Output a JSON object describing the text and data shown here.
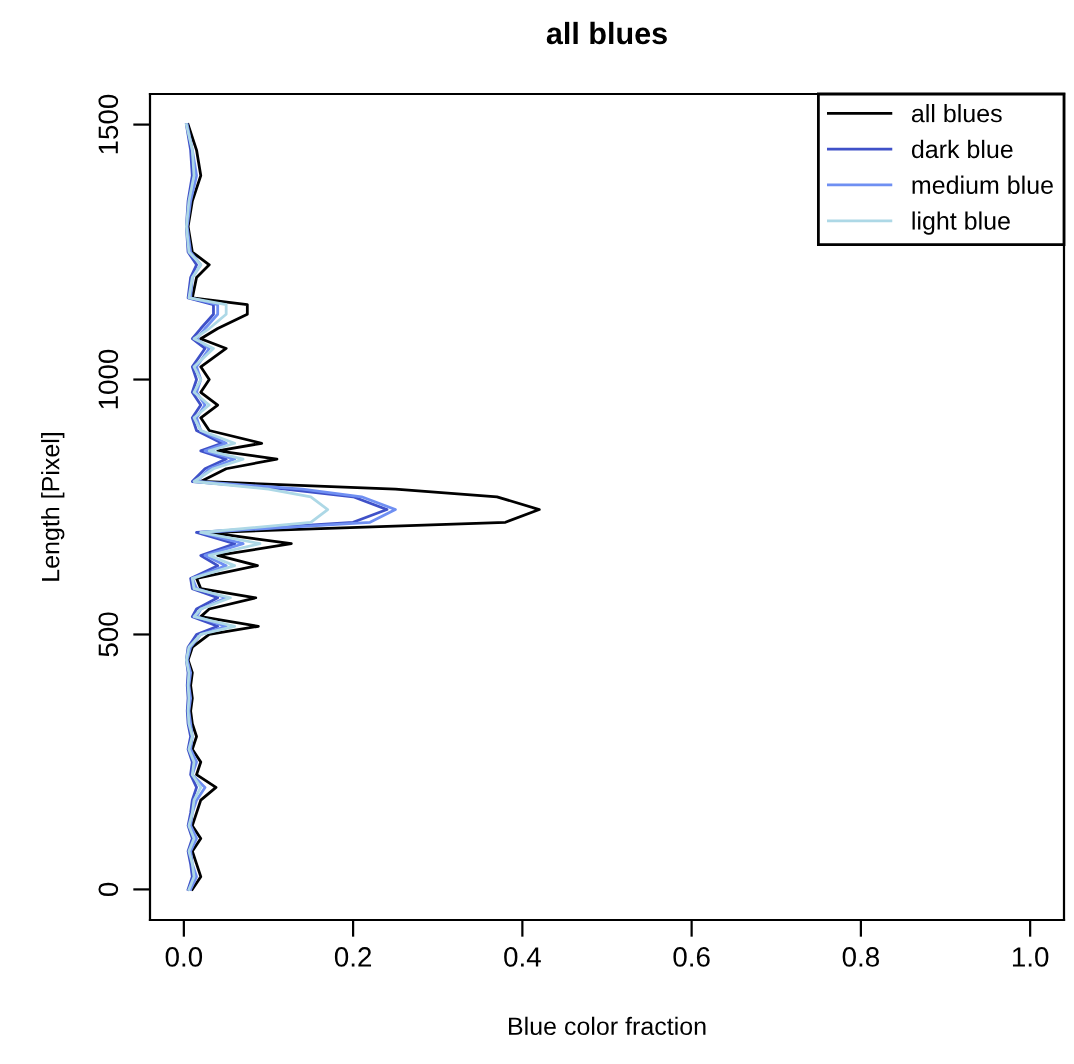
{
  "chart_data": {
    "type": "line",
    "title": "all blues",
    "xlabel": "Blue color fraction",
    "ylabel": "Length [Pixel]",
    "xlim": [
      -0.04,
      1.04
    ],
    "ylim": [
      -60,
      1560
    ],
    "xticks": [
      {
        "value": 0,
        "label": "0.0"
      },
      {
        "value": 0.2,
        "label": "0.2"
      },
      {
        "value": 0.4,
        "label": "0.4"
      },
      {
        "value": 0.6,
        "label": "0.6"
      },
      {
        "value": 0.8,
        "label": "0.8"
      },
      {
        "value": 1.0,
        "label": "1.0"
      }
    ],
    "yticks": [
      0,
      500,
      1000,
      1500
    ],
    "grid": false,
    "legend": "top right",
    "line_style": "solid",
    "marker": "none",
    "series": [
      {
        "name": "all blues",
        "color": "#000000",
        "x": [
          0.01,
          0.02,
          0.015,
          0.01,
          0.02,
          0.01,
          0.015,
          0.02,
          0.038,
          0.015,
          0.02,
          0.01,
          0.015,
          0.01,
          0.008,
          0.01,
          0.008,
          0.01,
          0.005,
          0.01,
          0.03,
          0.088,
          0.02,
          0.03,
          0.085,
          0.02,
          0.015,
          0.087,
          0.04,
          0.127,
          0.03,
          0.38,
          0.42,
          0.37,
          0.25,
          0.02,
          0.05,
          0.11,
          0.04,
          0.092,
          0.03,
          0.02,
          0.04,
          0.02,
          0.03,
          0.02,
          0.05,
          0.02,
          0.04,
          0.075,
          0.075,
          0.01,
          0.015,
          0.03,
          0.01,
          0.005,
          0.01,
          0.02,
          0.015,
          0.005
        ],
        "values": [
          0,
          25,
          50,
          75,
          100,
          125,
          150,
          175,
          200,
          225,
          250,
          275,
          300,
          325,
          350,
          375,
          400,
          425,
          450,
          475,
          500,
          516,
          535,
          550,
          572,
          590,
          610,
          635,
          655,
          678,
          700,
          720,
          745,
          770,
          785,
          800,
          825,
          844,
          860,
          875,
          900,
          925,
          950,
          975,
          1000,
          1025,
          1061,
          1080,
          1100,
          1128,
          1147,
          1160,
          1200,
          1225,
          1250,
          1300,
          1350,
          1400,
          1450,
          1500
        ]
      },
      {
        "name": "dark blue",
        "color": "#3f51c8",
        "x": [
          0.005,
          0.01,
          0.008,
          0.005,
          0.01,
          0.005,
          0.008,
          0.01,
          0.015,
          0.008,
          0.01,
          0.005,
          0.008,
          0.005,
          0.004,
          0.005,
          0.004,
          0.005,
          0.003,
          0.005,
          0.015,
          0.04,
          0.01,
          0.015,
          0.04,
          0.01,
          0.008,
          0.04,
          0.02,
          0.06,
          0.015,
          0.2,
          0.24,
          0.2,
          0.12,
          0.01,
          0.025,
          0.05,
          0.02,
          0.045,
          0.015,
          0.01,
          0.02,
          0.01,
          0.015,
          0.01,
          0.025,
          0.01,
          0.02,
          0.035,
          0.035,
          0.005,
          0.008,
          0.015,
          0.005,
          0.003,
          0.005,
          0.01,
          0.008,
          0.003
        ],
        "values": [
          0,
          25,
          50,
          75,
          100,
          125,
          150,
          175,
          200,
          225,
          250,
          275,
          300,
          325,
          350,
          375,
          400,
          425,
          450,
          475,
          500,
          516,
          535,
          550,
          572,
          590,
          610,
          635,
          655,
          678,
          700,
          720,
          745,
          770,
          785,
          800,
          825,
          844,
          860,
          875,
          900,
          925,
          950,
          975,
          1000,
          1025,
          1061,
          1080,
          1100,
          1128,
          1147,
          1160,
          1200,
          1225,
          1250,
          1300,
          1350,
          1400,
          1450,
          1500
        ]
      },
      {
        "name": "medium blue",
        "color": "#6f8ff2",
        "x": [
          0.008,
          0.015,
          0.01,
          0.008,
          0.015,
          0.008,
          0.01,
          0.015,
          0.025,
          0.01,
          0.015,
          0.008,
          0.01,
          0.008,
          0.006,
          0.008,
          0.006,
          0.008,
          0.004,
          0.008,
          0.02,
          0.05,
          0.015,
          0.02,
          0.05,
          0.015,
          0.01,
          0.05,
          0.025,
          0.07,
          0.02,
          0.22,
          0.25,
          0.21,
          0.14,
          0.015,
          0.03,
          0.06,
          0.025,
          0.05,
          0.02,
          0.015,
          0.025,
          0.015,
          0.02,
          0.015,
          0.03,
          0.015,
          0.025,
          0.04,
          0.04,
          0.008,
          0.01,
          0.02,
          0.008,
          0.004,
          0.008,
          0.015,
          0.01,
          0.004
        ],
        "values": [
          0,
          25,
          50,
          75,
          100,
          125,
          150,
          175,
          200,
          225,
          250,
          275,
          300,
          325,
          350,
          375,
          400,
          425,
          450,
          475,
          500,
          516,
          535,
          550,
          572,
          590,
          610,
          635,
          655,
          678,
          700,
          720,
          745,
          770,
          785,
          800,
          825,
          844,
          860,
          875,
          900,
          925,
          950,
          975,
          1000,
          1025,
          1061,
          1080,
          1100,
          1128,
          1147,
          1160,
          1200,
          1225,
          1250,
          1300,
          1350,
          1400,
          1450,
          1500
        ]
      },
      {
        "name": "light blue",
        "color": "#add8e6",
        "x": [
          0.006,
          0.012,
          0.01,
          0.006,
          0.012,
          0.006,
          0.01,
          0.012,
          0.02,
          0.01,
          0.012,
          0.006,
          0.01,
          0.006,
          0.005,
          0.006,
          0.005,
          0.006,
          0.003,
          0.006,
          0.02,
          0.06,
          0.012,
          0.02,
          0.055,
          0.012,
          0.01,
          0.06,
          0.03,
          0.09,
          0.02,
          0.15,
          0.17,
          0.15,
          0.1,
          0.012,
          0.035,
          0.07,
          0.03,
          0.06,
          0.02,
          0.012,
          0.03,
          0.012,
          0.02,
          0.012,
          0.035,
          0.012,
          0.03,
          0.05,
          0.05,
          0.006,
          0.01,
          0.02,
          0.006,
          0.003,
          0.006,
          0.012,
          0.01,
          0.003
        ],
        "values": [
          0,
          25,
          50,
          75,
          100,
          125,
          150,
          175,
          200,
          225,
          250,
          275,
          300,
          325,
          350,
          375,
          400,
          425,
          450,
          475,
          500,
          516,
          535,
          550,
          572,
          590,
          610,
          635,
          655,
          678,
          700,
          720,
          745,
          770,
          785,
          800,
          825,
          844,
          860,
          875,
          900,
          925,
          950,
          975,
          1000,
          1025,
          1061,
          1080,
          1100,
          1128,
          1147,
          1160,
          1200,
          1225,
          1250,
          1300,
          1350,
          1400,
          1450,
          1500
        ]
      }
    ]
  }
}
